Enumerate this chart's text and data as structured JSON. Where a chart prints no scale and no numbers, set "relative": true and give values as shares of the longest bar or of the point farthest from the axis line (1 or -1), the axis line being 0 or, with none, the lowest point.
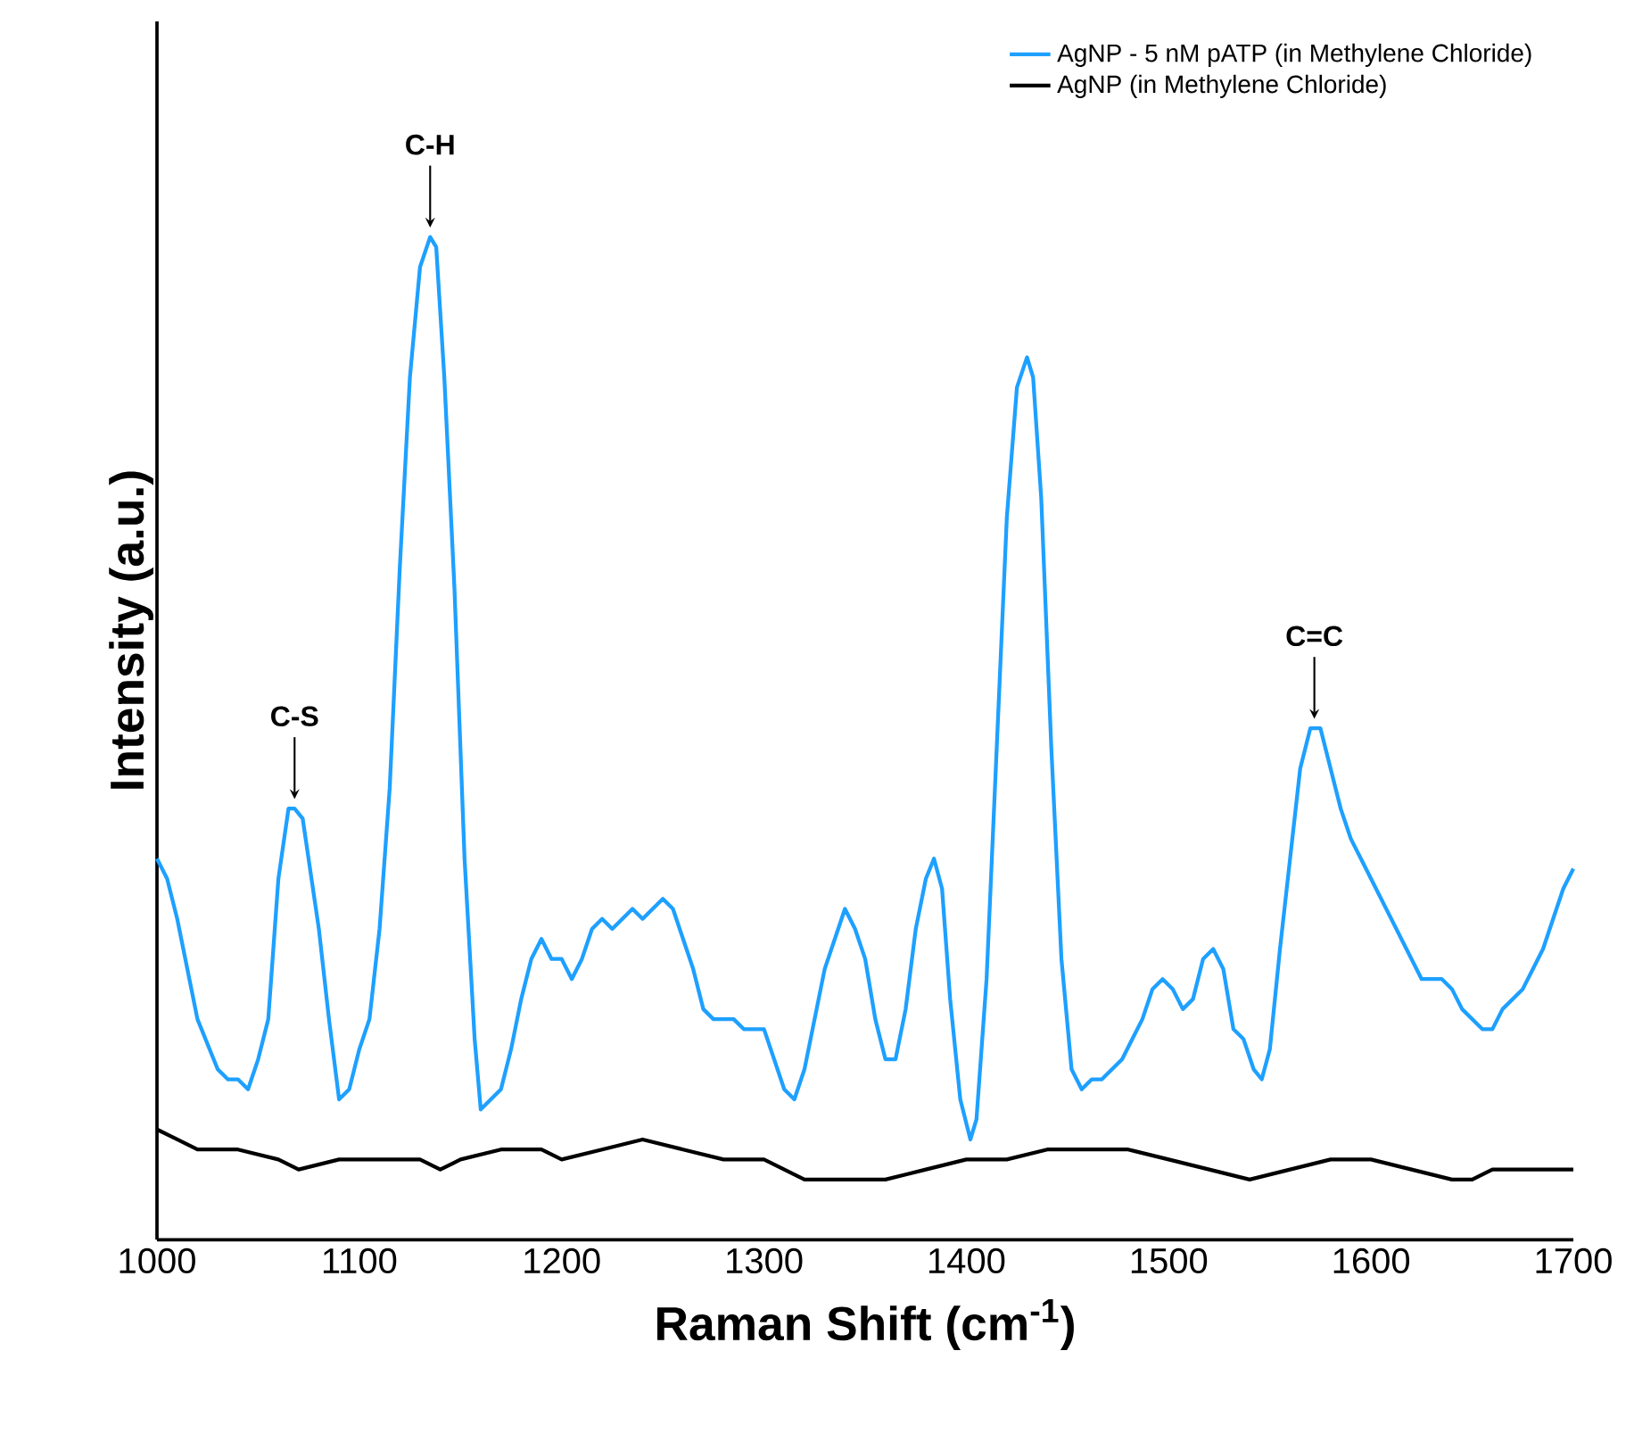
{
  "chart_data": {
    "type": "line",
    "relative": true,
    "xlabel": "Raman Shift (cm$^{-1}$)",
    "ylabel": "Intensity (a.u.)",
    "xlim": [
      1000,
      1700
    ],
    "xticks": [
      1000,
      1100,
      1200,
      1300,
      1400,
      1500,
      1600,
      1700
    ],
    "tick_labels": "x",
    "grid": false,
    "legend": "top right",
    "marker": "none",
    "line_style": "solid",
    "series": [
      {
        "name": "AgNP - 5 nM pATP (in Methylene Chloride)",
        "color": "#1ea0ff",
        "x": [
          1000,
          1005,
          1010,
          1020,
          1030,
          1035,
          1040,
          1045,
          1050,
          1055,
          1060,
          1065,
          1068,
          1072,
          1080,
          1085,
          1090,
          1095,
          1100,
          1105,
          1110,
          1115,
          1120,
          1125,
          1130,
          1135,
          1138,
          1142,
          1147,
          1152,
          1157,
          1160,
          1165,
          1170,
          1175,
          1180,
          1185,
          1190,
          1195,
          1200,
          1205,
          1210,
          1215,
          1220,
          1225,
          1230,
          1235,
          1240,
          1245,
          1250,
          1255,
          1260,
          1265,
          1270,
          1275,
          1280,
          1285,
          1290,
          1295,
          1300,
          1305,
          1310,
          1315,
          1320,
          1325,
          1330,
          1335,
          1340,
          1345,
          1350,
          1355,
          1360,
          1365,
          1370,
          1375,
          1380,
          1384,
          1388,
          1392,
          1397,
          1402,
          1405,
          1410,
          1415,
          1420,
          1425,
          1430,
          1433,
          1437,
          1442,
          1447,
          1452,
          1457,
          1462,
          1467,
          1472,
          1477,
          1482,
          1487,
          1492,
          1497,
          1502,
          1507,
          1512,
          1517,
          1522,
          1527,
          1532,
          1537,
          1542,
          1546,
          1550,
          1555,
          1560,
          1565,
          1570,
          1575,
          1580,
          1585,
          1590,
          1595,
          1600,
          1605,
          1610,
          1615,
          1620,
          1625,
          1630,
          1635,
          1640,
          1645,
          1650,
          1655,
          1660,
          1665,
          1670,
          1675,
          1680,
          1685,
          1690,
          1695,
          1700
        ],
        "values": [
          0.38,
          0.36,
          0.32,
          0.22,
          0.17,
          0.16,
          0.16,
          0.15,
          0.18,
          0.22,
          0.36,
          0.43,
          0.43,
          0.42,
          0.31,
          0.22,
          0.14,
          0.15,
          0.19,
          0.22,
          0.31,
          0.45,
          0.67,
          0.86,
          0.97,
          1.0,
          0.99,
          0.86,
          0.65,
          0.38,
          0.2,
          0.13,
          0.14,
          0.15,
          0.19,
          0.24,
          0.28,
          0.3,
          0.28,
          0.28,
          0.26,
          0.28,
          0.31,
          0.32,
          0.31,
          0.32,
          0.33,
          0.32,
          0.33,
          0.34,
          0.33,
          0.3,
          0.27,
          0.23,
          0.22,
          0.22,
          0.22,
          0.21,
          0.21,
          0.21,
          0.18,
          0.15,
          0.14,
          0.17,
          0.22,
          0.27,
          0.3,
          0.33,
          0.31,
          0.28,
          0.22,
          0.18,
          0.18,
          0.23,
          0.31,
          0.36,
          0.38,
          0.35,
          0.24,
          0.14,
          0.1,
          0.12,
          0.26,
          0.49,
          0.72,
          0.85,
          0.88,
          0.86,
          0.74,
          0.49,
          0.28,
          0.17,
          0.15,
          0.16,
          0.16,
          0.17,
          0.18,
          0.2,
          0.22,
          0.25,
          0.26,
          0.25,
          0.23,
          0.24,
          0.28,
          0.29,
          0.27,
          0.21,
          0.2,
          0.17,
          0.16,
          0.19,
          0.29,
          0.38,
          0.47,
          0.51,
          0.51,
          0.47,
          0.43,
          0.4,
          0.38,
          0.36,
          0.34,
          0.32,
          0.3,
          0.28,
          0.26,
          0.26,
          0.26,
          0.25,
          0.23,
          0.22,
          0.21,
          0.21,
          0.23,
          0.24,
          0.25,
          0.27,
          0.29,
          0.32,
          0.35,
          0.37
        ]
      },
      {
        "name": "AgNP (in Methylene Chloride)",
        "color": "#000000",
        "x": [
          1000,
          1010,
          1020,
          1040,
          1060,
          1070,
          1090,
          1110,
          1130,
          1140,
          1150,
          1170,
          1190,
          1200,
          1220,
          1240,
          1260,
          1280,
          1300,
          1320,
          1340,
          1360,
          1380,
          1400,
          1420,
          1440,
          1460,
          1480,
          1500,
          1520,
          1540,
          1560,
          1580,
          1600,
          1620,
          1640,
          1650,
          1660,
          1680,
          1700
        ],
        "values": [
          0.11,
          0.1,
          0.09,
          0.09,
          0.08,
          0.07,
          0.08,
          0.08,
          0.08,
          0.07,
          0.08,
          0.09,
          0.09,
          0.08,
          0.09,
          0.1,
          0.09,
          0.08,
          0.08,
          0.06,
          0.06,
          0.06,
          0.07,
          0.08,
          0.08,
          0.09,
          0.09,
          0.09,
          0.08,
          0.07,
          0.06,
          0.07,
          0.08,
          0.08,
          0.07,
          0.06,
          0.06,
          0.07,
          0.07,
          0.07
        ]
      }
    ],
    "annotations": [
      {
        "text": "C-S",
        "x": 1068,
        "y": 0.43
      },
      {
        "text": "C-H",
        "x": 1135,
        "y": 1.0
      },
      {
        "text": "C=C",
        "x": 1572,
        "y": 0.51
      }
    ]
  }
}
